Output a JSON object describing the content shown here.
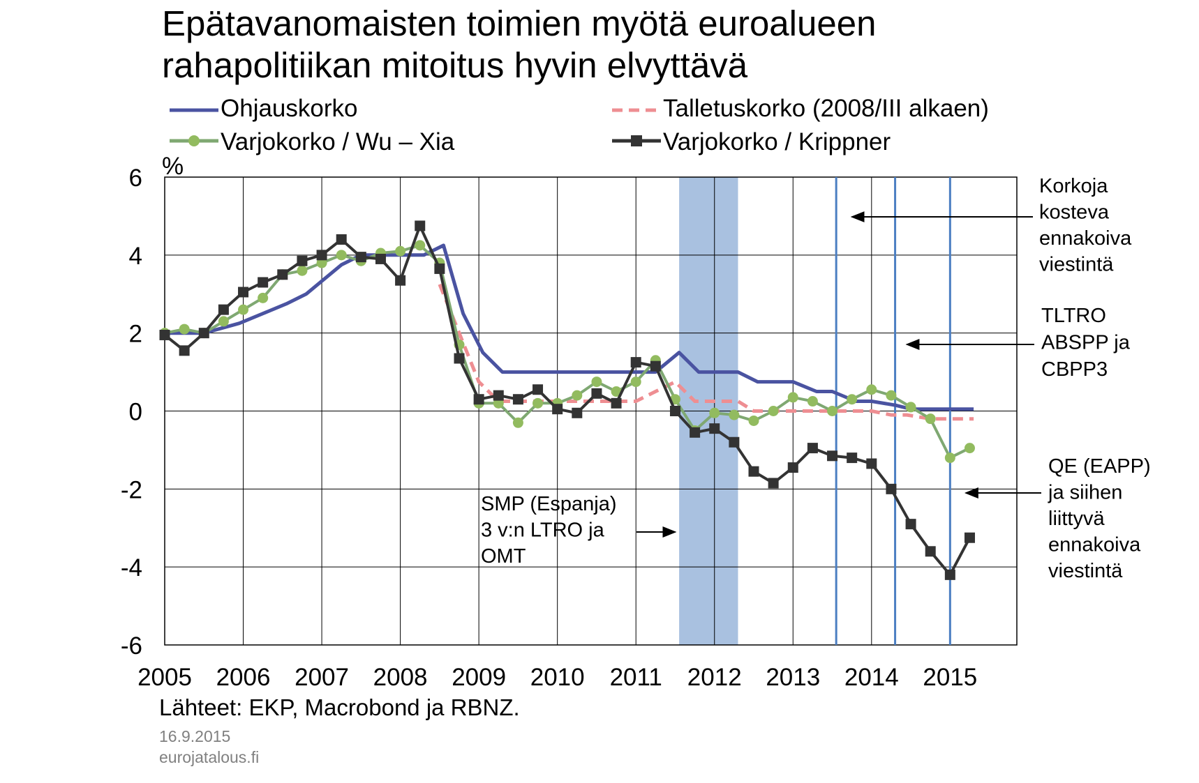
{
  "title_lines": [
    "Epätavanomaisten toimien myötä euroalueen",
    "rahapolitiikan mitoitus hyvin elvyttävä"
  ],
  "legend": {
    "ohjaus": "Ohjauskorko",
    "talletus": "Talletuskorko (2008/III alkaen)",
    "wuxia": "Varjokorko / Wu – Xia",
    "krippner": "Varjokorko / Krippner"
  },
  "footer": {
    "sources": "Lähteet: EKP, Macrobond ja RBNZ.",
    "date": "16.9.2015",
    "site": "eurojatalous.fi"
  },
  "colors": {
    "ohjaus": "#4A53A1",
    "talletus": "#EE8E92",
    "wuxia": "#92BB5F",
    "wuxia_line": "#7FA872",
    "krippner": "#333333",
    "shade": "#A9C1E0",
    "vline": "#4C7FC2"
  },
  "chart_data": {
    "type": "line",
    "ylabel": "%",
    "ylim": [
      -6,
      6
    ],
    "yticks": [
      6,
      4,
      2,
      0,
      -2,
      -4,
      -6
    ],
    "ytick_labels": [
      "6",
      "4",
      "2",
      "0",
      "-2",
      "-4",
      "-6"
    ],
    "xlim": [
      2005,
      2015.85
    ],
    "xticks": [
      2005,
      2006,
      2007,
      2008,
      2009,
      2010,
      2011,
      2012,
      2013,
      2014,
      2015
    ],
    "xtick_labels": [
      "2005",
      "2006",
      "2007",
      "2008",
      "2009",
      "2010",
      "2011",
      "2012",
      "2013",
      "2014",
      "2015"
    ],
    "grid": true,
    "series": [
      {
        "name": "Ohjauskorko",
        "key": "ohjaus",
        "style": "solid",
        "x": [
          2005.0,
          2005.5,
          2005.95,
          2006.25,
          2006.55,
          2006.8,
          2007.25,
          2007.5,
          2008.0,
          2008.3,
          2008.55,
          2008.8,
          2009.05,
          2009.3,
          2011.25,
          2011.55,
          2011.8,
          2012.0,
          2012.3,
          2012.55,
          2013.0,
          2013.3,
          2013.5,
          2013.8,
          2014.0,
          2014.3,
          2014.5,
          2014.8,
          2015.3
        ],
        "y": [
          2.0,
          2.0,
          2.25,
          2.5,
          2.75,
          3.0,
          3.75,
          4.0,
          4.0,
          4.0,
          4.25,
          2.5,
          1.5,
          1.0,
          1.0,
          1.5,
          1.0,
          1.0,
          1.0,
          0.75,
          0.75,
          0.5,
          0.5,
          0.25,
          0.25,
          0.15,
          0.05,
          0.05,
          0.05
        ]
      },
      {
        "name": "Talletuskorko (2008/III alkaen)",
        "key": "talletus",
        "style": "dashed",
        "x": [
          2008.5,
          2008.75,
          2009.0,
          2009.25,
          2009.5,
          2011.0,
          2011.25,
          2011.5,
          2011.75,
          2012.0,
          2012.3,
          2012.5,
          2012.75,
          2013.5,
          2014.0,
          2014.25,
          2014.45,
          2014.75,
          2015.3
        ],
        "y": [
          3.25,
          2.0,
          0.75,
          0.25,
          0.25,
          0.25,
          0.5,
          0.75,
          0.25,
          0.25,
          0.25,
          0.0,
          0.0,
          0.0,
          0.0,
          -0.1,
          -0.1,
          -0.2,
          -0.2
        ]
      },
      {
        "name": "Varjokorko / Wu – Xia",
        "key": "wuxia",
        "style": "circle",
        "x": [
          2005.0,
          2005.25,
          2005.5,
          2005.75,
          2006.0,
          2006.25,
          2006.5,
          2006.75,
          2007.0,
          2007.25,
          2007.5,
          2007.75,
          2008.0,
          2008.25,
          2008.5,
          2008.75,
          2009.0,
          2009.25,
          2009.5,
          2009.75,
          2010.0,
          2010.25,
          2010.5,
          2010.75,
          2011.0,
          2011.25,
          2011.5,
          2011.75,
          2012.0,
          2012.25,
          2012.5,
          2012.75,
          2013.0,
          2013.25,
          2013.5,
          2013.75,
          2014.0,
          2014.25,
          2014.5,
          2014.75,
          2015.0,
          2015.25
        ],
        "y": [
          2.0,
          2.1,
          2.0,
          2.3,
          2.6,
          2.9,
          3.5,
          3.6,
          3.8,
          4.0,
          3.85,
          4.05,
          4.1,
          4.25,
          3.8,
          1.7,
          0.2,
          0.2,
          -0.3,
          0.2,
          0.2,
          0.4,
          0.75,
          0.5,
          0.75,
          1.3,
          0.3,
          -0.5,
          -0.05,
          -0.1,
          -0.25,
          0.0,
          0.35,
          0.25,
          0.0,
          0.3,
          0.55,
          0.4,
          0.1,
          -0.2,
          -1.2,
          -0.95
        ]
      },
      {
        "name": "Varjokorko / Krippner",
        "key": "krippner",
        "style": "square",
        "x": [
          2005.0,
          2005.25,
          2005.5,
          2005.75,
          2006.0,
          2006.25,
          2006.5,
          2006.75,
          2007.0,
          2007.25,
          2007.5,
          2007.75,
          2008.0,
          2008.25,
          2008.5,
          2008.75,
          2009.0,
          2009.25,
          2009.5,
          2009.75,
          2010.0,
          2010.25,
          2010.5,
          2010.75,
          2011.0,
          2011.25,
          2011.5,
          2011.75,
          2012.0,
          2012.25,
          2012.5,
          2012.75,
          2013.0,
          2013.25,
          2013.5,
          2013.75,
          2014.0,
          2014.25,
          2014.5,
          2014.75,
          2015.0,
          2015.25
        ],
        "y": [
          1.95,
          1.55,
          2.0,
          2.6,
          3.05,
          3.3,
          3.5,
          3.85,
          4.0,
          4.4,
          3.95,
          3.9,
          3.35,
          4.75,
          3.65,
          1.35,
          0.3,
          0.4,
          0.3,
          0.55,
          0.05,
          -0.05,
          0.45,
          0.2,
          1.25,
          1.15,
          0.0,
          -0.55,
          -0.45,
          -0.8,
          -1.55,
          -1.85,
          -1.45,
          -0.95,
          -1.15,
          -1.2,
          -1.35,
          -2.0,
          -2.9,
          -3.6,
          -4.2,
          -3.25
        ]
      }
    ],
    "shaded_period": [
      2011.55,
      2012.3
    ],
    "event_lines": [
      2013.55,
      2014.3,
      2015.0
    ],
    "annotations": [
      {
        "lines": [
          "Korkoja",
          "kosteva",
          "ennakoiva",
          "viestintä"
        ],
        "arrow_to_x": 2013.75
      },
      {
        "lines": [
          "TLTRO",
          "ABSPP ja",
          "CBPP3"
        ],
        "arrow_to_x": 2014.45
      },
      {
        "lines": [
          "QE (EAPP)",
          "ja siihen",
          "liittyvä",
          "ennakoiva",
          "viestintä"
        ],
        "arrow_to_x": 2015.2
      },
      {
        "lines": [
          "SMP (Espanja)",
          "3 v:n LTRO ja",
          "OMT"
        ],
        "arrow_to_x": 2011.5
      }
    ]
  }
}
